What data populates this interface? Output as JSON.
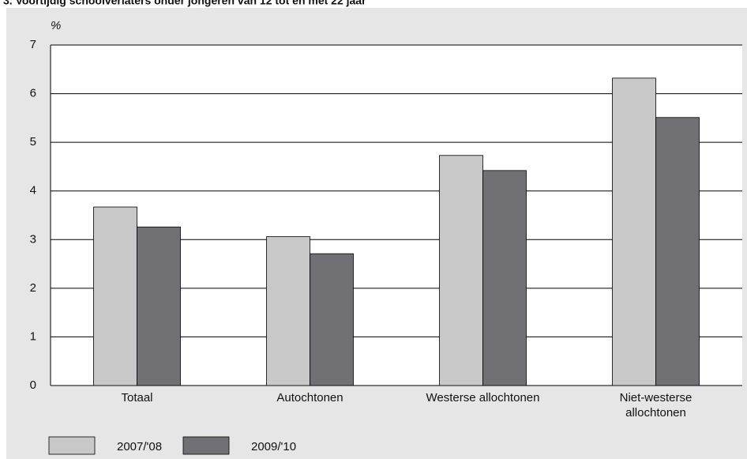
{
  "chart_data": {
    "type": "bar",
    "title": "3.   Voortijdig schoolverlaters onder jongeren van 12 tot en met 22 jaar",
    "y_label": "%",
    "categories": [
      "Totaal",
      "Autochtonen",
      "Westerse allochtonen",
      "Niet-westerse allochtonen"
    ],
    "series": [
      {
        "name": "2007/'08",
        "color": "#c8c8c8",
        "values": [
          3.67,
          3.06,
          4.73,
          6.32
        ]
      },
      {
        "name": "2009/'10",
        "color": "#717175",
        "values": [
          3.26,
          2.71,
          4.42,
          5.51
        ]
      }
    ],
    "ylim": [
      0,
      7
    ],
    "yticks": [
      0,
      1,
      2,
      3,
      4,
      5,
      6,
      7
    ],
    "grid": true,
    "legend": "bottom-left"
  }
}
